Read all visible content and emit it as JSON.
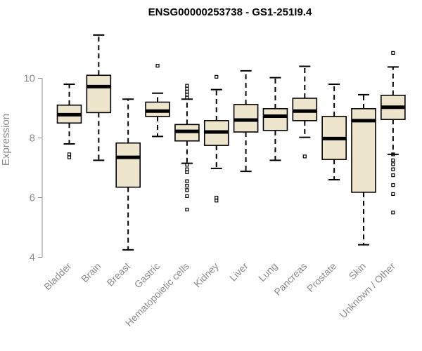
{
  "chart_data": {
    "type": "box",
    "title": "ENSG00000253738 - GS1-251I9.4",
    "xlabel": "",
    "ylabel": "Expression",
    "ylim": [
      4,
      11.6
    ],
    "yticks": [
      4,
      6,
      8,
      10
    ],
    "box_color": "#ede6cd",
    "categories": [
      "Bladder",
      "Brain",
      "Breast",
      "Gastric",
      "Hematopoietic cells",
      "Kidney",
      "Liver",
      "Lung",
      "Pancreas",
      "Prostate",
      "Skin",
      "Unknown / Other"
    ],
    "boxes": [
      {
        "name": "Bladder",
        "whisker_low": 7.8,
        "q1": 8.5,
        "median": 8.78,
        "q3": 9.1,
        "whisker_high": 9.8,
        "outliers": [
          7.35,
          7.45
        ]
      },
      {
        "name": "Brain",
        "whisker_low": 7.25,
        "q1": 8.85,
        "median": 9.72,
        "q3": 10.1,
        "whisker_high": 11.45,
        "outliers": []
      },
      {
        "name": "Breast",
        "whisker_low": 4.25,
        "q1": 6.35,
        "median": 7.35,
        "q3": 7.83,
        "whisker_high": 9.3,
        "outliers": []
      },
      {
        "name": "Gastric",
        "whisker_low": 8.05,
        "q1": 8.72,
        "median": 8.9,
        "q3": 9.2,
        "whisker_high": 9.5,
        "outliers": [
          10.42
        ]
      },
      {
        "name": "Hematopoietic cells",
        "whisker_low": 7.15,
        "q1": 7.9,
        "median": 8.22,
        "q3": 8.45,
        "whisker_high": 9.3,
        "outliers": [
          5.6,
          6.05,
          6.25,
          6.4,
          6.55,
          6.85,
          6.95,
          7.1,
          9.35,
          9.45,
          9.55,
          9.65,
          9.75
        ]
      },
      {
        "name": "Kidney",
        "whisker_low": 6.98,
        "q1": 7.75,
        "median": 8.2,
        "q3": 8.58,
        "whisker_high": 9.62,
        "outliers": [
          5.9,
          6.0,
          10.05
        ]
      },
      {
        "name": "Liver",
        "whisker_low": 6.88,
        "q1": 8.2,
        "median": 8.6,
        "q3": 9.12,
        "whisker_high": 10.25,
        "outliers": []
      },
      {
        "name": "Lung",
        "whisker_low": 7.25,
        "q1": 8.25,
        "median": 8.73,
        "q3": 8.98,
        "whisker_high": 10.02,
        "outliers": []
      },
      {
        "name": "Pancreas",
        "whisker_low": 8.02,
        "q1": 8.58,
        "median": 8.9,
        "q3": 9.33,
        "whisker_high": 10.4,
        "outliers": [
          7.38
        ]
      },
      {
        "name": "Prostate",
        "whisker_low": 6.6,
        "q1": 7.28,
        "median": 7.98,
        "q3": 8.72,
        "whisker_high": 9.8,
        "outliers": []
      },
      {
        "name": "Skin",
        "whisker_low": 4.42,
        "q1": 6.18,
        "median": 8.58,
        "q3": 8.98,
        "whisker_high": 9.45,
        "outliers": []
      },
      {
        "name": "Unknown / Other",
        "whisker_low": 7.45,
        "q1": 8.62,
        "median": 9.03,
        "q3": 9.43,
        "whisker_high": 10.38,
        "outliers": [
          5.5,
          6.12,
          6.42,
          6.75,
          6.95,
          7.12,
          7.25,
          7.45,
          10.85
        ]
      }
    ]
  }
}
